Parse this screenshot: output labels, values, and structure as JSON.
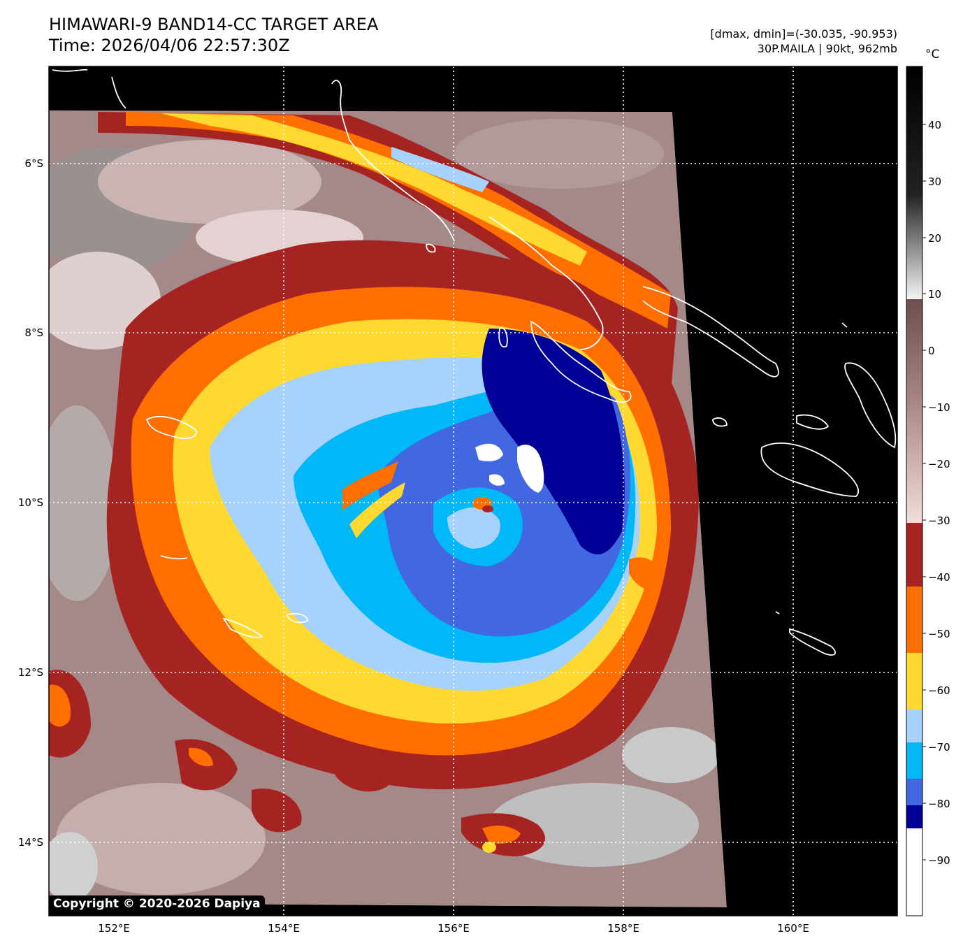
{
  "header": {
    "title_line1": "HIMAWARI-9 BAND14-CC TARGET AREA",
    "title_line2": "Time: 2026/04/06 22:57:30Z",
    "range_text": "[dmax, dmin]=(-30.035, -90.953)",
    "storm_text": "30P.MAILA | 90kt, 962mb"
  },
  "colorbar": {
    "unit": "°C",
    "ticks": [
      "40",
      "30",
      "20",
      "10",
      "0",
      "−10",
      "−20",
      "−30",
      "−40",
      "−50",
      "−60",
      "−70",
      "−80",
      "−90"
    ]
  },
  "axes": {
    "lon_labels": [
      "152°E",
      "154°E",
      "156°E",
      "158°E",
      "160°E"
    ],
    "lat_labels": [
      "6°S",
      "8°S",
      "10°S",
      "12°S",
      "14°S"
    ]
  },
  "colors": {
    "background": "#000000",
    "dark_red": "#a52422",
    "orange": "#ff6f00",
    "yellow": "#ffd92f",
    "light_blue": "#a6d2fb",
    "cyan": "#00b7f7",
    "royal_blue": "#4168e0",
    "navy": "#000096",
    "white": "#ffffff"
  },
  "copyright": "Copyright © 2020-2026 Dapiya"
}
